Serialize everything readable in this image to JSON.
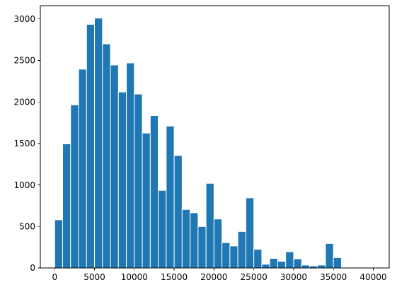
{
  "chart_data": {
    "type": "bar",
    "subtype": "histogram",
    "title": "",
    "xlabel": "",
    "ylabel": "",
    "bin_width": 1000,
    "bin_starts": [
      0,
      1000,
      2000,
      3000,
      4000,
      5000,
      6000,
      7000,
      8000,
      9000,
      10000,
      11000,
      12000,
      13000,
      14000,
      15000,
      16000,
      17000,
      18000,
      19000,
      20000,
      21000,
      22000,
      23000,
      24000,
      25000,
      26000,
      27000,
      28000,
      29000,
      30000,
      31000,
      32000,
      33000,
      34000,
      35000,
      36000,
      37000,
      38000,
      39000
    ],
    "values": [
      580,
      1495,
      1965,
      2395,
      2935,
      3010,
      2700,
      2445,
      2120,
      2470,
      2095,
      1625,
      1835,
      935,
      1710,
      1355,
      705,
      665,
      500,
      1020,
      590,
      305,
      265,
      440,
      845,
      225,
      45,
      115,
      80,
      195,
      110,
      35,
      25,
      35,
      295,
      125,
      0,
      0,
      0,
      0
    ],
    "xlim": [
      -1800,
      42000
    ],
    "ylim": [
      0,
      3160
    ],
    "xticks": [
      "0",
      "5000",
      "10000",
      "15000",
      "20000",
      "25000",
      "30000",
      "35000",
      "40000"
    ],
    "xtick_values": [
      0,
      5000,
      10000,
      15000,
      20000,
      25000,
      30000,
      35000,
      40000
    ],
    "yticks": [
      "0",
      "500",
      "1000",
      "1500",
      "2000",
      "2500",
      "3000"
    ],
    "ytick_values": [
      0,
      500,
      1000,
      1500,
      2000,
      2500,
      3000
    ],
    "grid": false,
    "legend": "none",
    "colors": {
      "bar": "#1f77b4",
      "bar_edge": "#ffffff",
      "axes": "#000000"
    }
  }
}
